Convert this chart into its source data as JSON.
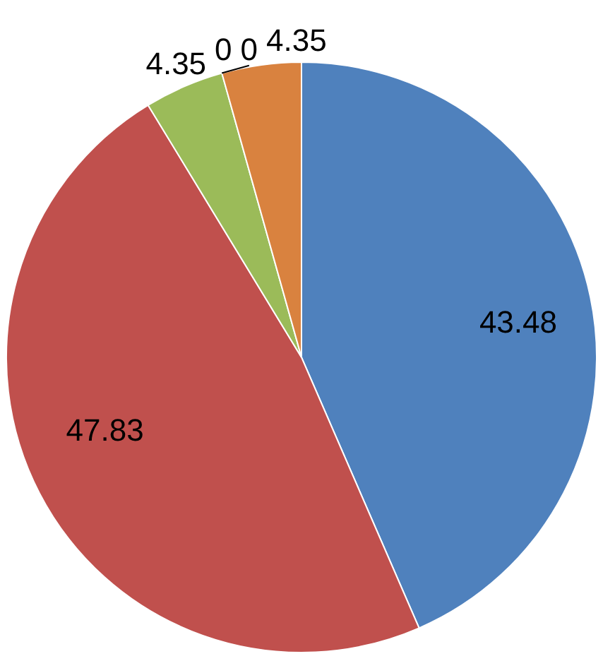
{
  "chart_data": {
    "type": "pie",
    "categories": [
      null,
      null,
      null,
      null,
      null,
      null
    ],
    "values": [
      43.48,
      47.83,
      4.35,
      0,
      0,
      4.35
    ],
    "value_labels": [
      "43.48",
      "47.83",
      "4.35",
      "0",
      "0",
      "4.35"
    ],
    "colors": [
      "#4f81bd",
      "#c0504d",
      "#9bbb59",
      "#8064a2",
      "#4bacc6",
      "#d9823f"
    ],
    "legend": false
  }
}
